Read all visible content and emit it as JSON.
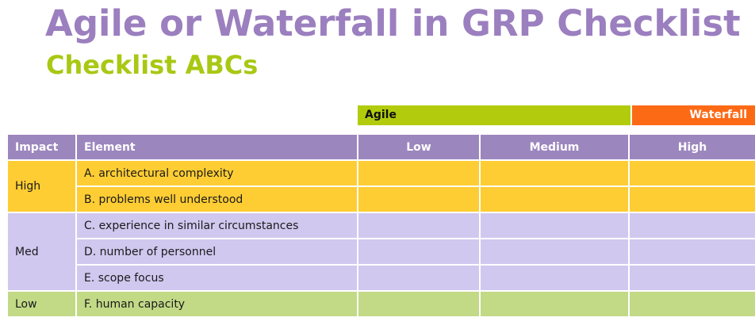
{
  "title": "Agile or Waterfall in GRP Checklist",
  "subtitle": "Checklist ABCs",
  "bands": {
    "agile": "Agile",
    "waterfall": "Waterfall"
  },
  "table": {
    "headers": {
      "impact": "Impact",
      "element": "Element",
      "low": "Low",
      "medium": "Medium",
      "high": "High"
    },
    "groups": [
      {
        "impact": "High",
        "elements": [
          "A. architectural complexity",
          "B. problems well understood"
        ]
      },
      {
        "impact": "Med",
        "elements": [
          "C. experience in similar circumstances",
          "D. number of personnel",
          "E. scope focus"
        ]
      },
      {
        "impact": "Low",
        "elements": [
          "F. human capacity"
        ]
      }
    ]
  },
  "colors": {
    "title": "#9b7fbf",
    "subtitle": "#a8c813",
    "agile_band": "#b2cc0d",
    "waterfall_band": "#fd6a16",
    "header_row": "#9c86be",
    "high_rows": "#fecd34",
    "med_rows": "#d0c8ef",
    "low_rows": "#c2d986"
  }
}
